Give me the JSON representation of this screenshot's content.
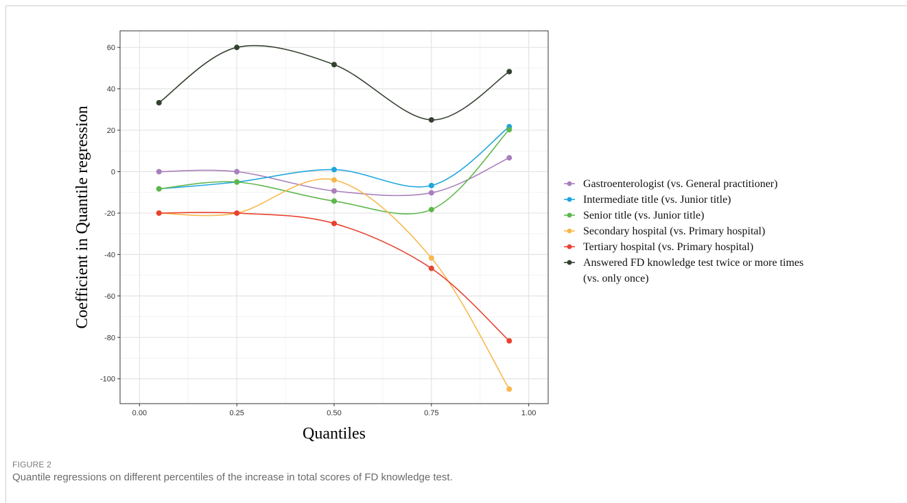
{
  "figure": {
    "label": "FIGURE 2",
    "caption": "Quantile regressions on different percentiles of the increase in total scores of FD knowledge test."
  },
  "chart_data": {
    "type": "line",
    "xlabel": "Quantiles",
    "ylabel": "Coefficient in Quantile regression",
    "xlim": [
      -0.05,
      1.05
    ],
    "ylim": [
      -112,
      68
    ],
    "xticks": [
      0.0,
      0.25,
      0.5,
      0.75,
      1.0
    ],
    "xtick_labels": [
      "0.00",
      "0.25",
      "0.50",
      "0.75",
      "1.00"
    ],
    "yticks": [
      -100,
      -80,
      -60,
      -40,
      -20,
      0,
      20,
      40,
      60
    ],
    "ytick_labels": [
      "-100",
      "-80",
      "-60",
      "-40",
      "-20",
      "0",
      "20",
      "40",
      "60"
    ],
    "grid": true,
    "legend_position": "right",
    "x": [
      0.05,
      0.25,
      0.5,
      0.75,
      0.95
    ],
    "series": [
      {
        "name": "Gastroenterologist (vs. General practitioner)",
        "color": "#A97FBD",
        "values": [
          0,
          0,
          -9.3,
          -10.2,
          6.7
        ]
      },
      {
        "name": "Intermediate title (vs. Junior title)",
        "color": "#1EA5DE",
        "values": [
          -8.3,
          -5,
          1,
          -6.7,
          21.7
        ]
      },
      {
        "name": "Senior title (vs. Junior title)",
        "color": "#5DB74A",
        "values": [
          -8.3,
          -5,
          -14.2,
          -18.3,
          20.3
        ]
      },
      {
        "name": "Secondary hospital (vs. Primary hospital)",
        "color": "#F8B84A",
        "values": [
          -20,
          -20,
          -4,
          -41.7,
          -105
        ]
      },
      {
        "name": "Tertiary hospital (vs. Primary hospital)",
        "color": "#E8422F",
        "values": [
          -20,
          -20,
          -25,
          -46.7,
          -81.7
        ]
      },
      {
        "name": "Answered FD knowledge test twice or more times",
        "name_line2": "(vs. only once)",
        "color": "#33412F",
        "values": [
          33.3,
          60,
          51.7,
          25,
          48.3
        ]
      }
    ]
  }
}
